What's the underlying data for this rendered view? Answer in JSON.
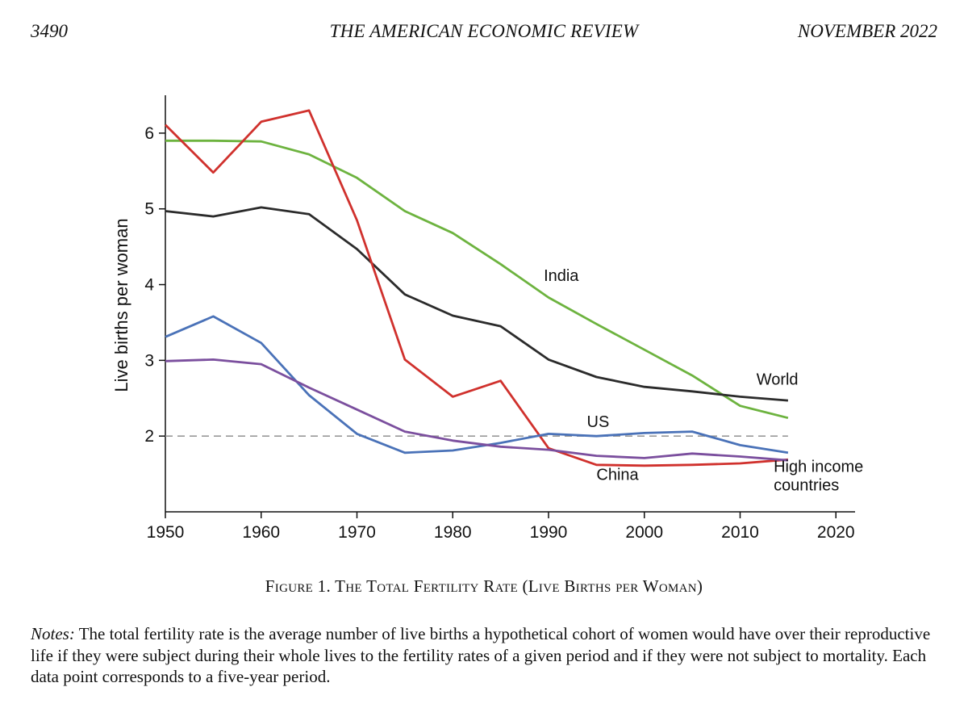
{
  "header": {
    "page_number": "3490",
    "journal": "THE AMERICAN ECONOMIC REVIEW",
    "date": "NOVEMBER 2022"
  },
  "caption": "Figure 1. The Total Fertility Rate (Live Births per Woman)",
  "notes": {
    "label": "Notes:",
    "text": " The total fertility rate is the average number of live births a hypothetical cohort of women would have over their reproductive life if they were subject during their whole lives to the fertility rates of a given period and if they were not subject to mortality. Each data point corresponds to a five-year period."
  },
  "chart_data": {
    "type": "line",
    "title": "",
    "xlabel": "",
    "ylabel": "Live births per woman",
    "xlim": [
      1950,
      2022
    ],
    "ylim": [
      1,
      6.5
    ],
    "x_ticks": [
      1950,
      1960,
      1970,
      1980,
      1990,
      2000,
      2010,
      2020
    ],
    "y_ticks": [
      2,
      3,
      4,
      5,
      6
    ],
    "x": [
      1950,
      1955,
      1960,
      1965,
      1970,
      1975,
      1980,
      1985,
      1990,
      1995,
      2000,
      2005,
      2010,
      2015
    ],
    "reference_line": {
      "y": 2.0,
      "style": "dashed",
      "color": "#999999"
    },
    "grid": false,
    "series": [
      {
        "name": "India",
        "color": "#6db33f",
        "values": [
          5.9,
          5.9,
          5.89,
          5.72,
          5.41,
          4.97,
          4.68,
          4.27,
          3.83,
          3.48,
          3.14,
          2.8,
          2.4,
          2.24
        ]
      },
      {
        "name": "World",
        "color": "#2b2b2b",
        "values": [
          4.97,
          4.9,
          5.02,
          4.93,
          4.47,
          3.87,
          3.59,
          3.45,
          3.01,
          2.78,
          2.65,
          2.59,
          2.52,
          2.47
        ]
      },
      {
        "name": "China",
        "color": "#d0312d",
        "values": [
          6.11,
          5.48,
          6.15,
          6.3,
          4.85,
          3.01,
          2.52,
          2.73,
          1.84,
          1.62,
          1.61,
          1.62,
          1.64,
          1.69
        ]
      },
      {
        "name": "US",
        "color": "#4a72b8",
        "values": [
          3.31,
          3.58,
          3.23,
          2.54,
          2.03,
          1.78,
          1.81,
          1.91,
          2.03,
          2.0,
          2.04,
          2.06,
          1.88,
          1.78
        ]
      },
      {
        "name": "High income countries",
        "color": "#7b4f9e",
        "values": [
          2.99,
          3.01,
          2.95,
          2.64,
          2.35,
          2.06,
          1.94,
          1.86,
          1.82,
          1.74,
          1.71,
          1.77,
          1.73,
          1.68
        ]
      }
    ],
    "series_labels": [
      {
        "text": "India",
        "x": 1989.5,
        "y": 4.05
      },
      {
        "text": "World",
        "x": 2011.7,
        "y": 2.68
      },
      {
        "text": "US",
        "x": 1994,
        "y": 2.12
      },
      {
        "text": "China",
        "x": 1995,
        "y": 1.42
      },
      {
        "text": "High income",
        "x": 2013.5,
        "y": 1.53
      },
      {
        "text": "countries",
        "x": 2013.5,
        "y": 1.28
      }
    ]
  }
}
